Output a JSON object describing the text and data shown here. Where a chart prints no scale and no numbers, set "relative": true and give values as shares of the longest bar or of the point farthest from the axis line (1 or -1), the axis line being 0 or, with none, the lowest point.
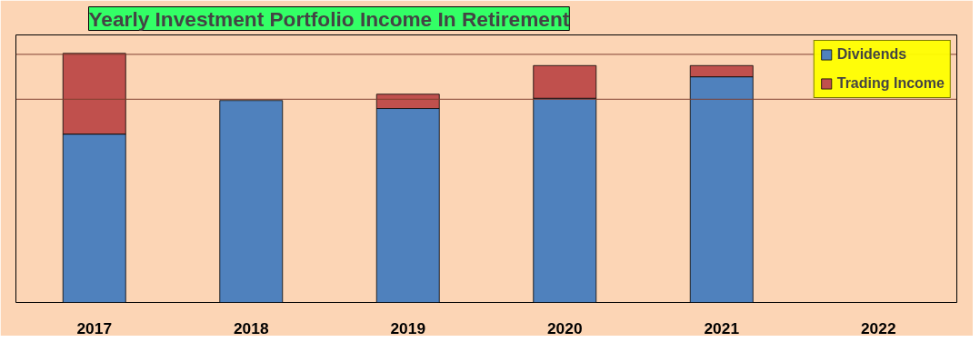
{
  "chart_data": {
    "type": "bar",
    "title": "Yearly Investment Portfolio Income In Retirement",
    "relative": true,
    "stacked": true,
    "legend": "top right",
    "categories": [
      "2017",
      "2018",
      "2019",
      "2020",
      "2021",
      "2022"
    ],
    "series": [
      {
        "name": "Dividends",
        "color": "#4f81bd",
        "values": [
          0.676,
          0.811,
          0.779,
          0.82,
          0.906,
          null
        ]
      },
      {
        "name": "Trading Income",
        "color": "#c0504d",
        "values": [
          0.324,
          null,
          0.057,
          0.131,
          0.045,
          null
        ]
      }
    ],
    "ref_lines": [
      {
        "axis": "y",
        "value": 0.996,
        "color": "#7f3f2f"
      },
      {
        "axis": "y",
        "value": 0.816,
        "color": "#7f3f2f"
      }
    ]
  }
}
